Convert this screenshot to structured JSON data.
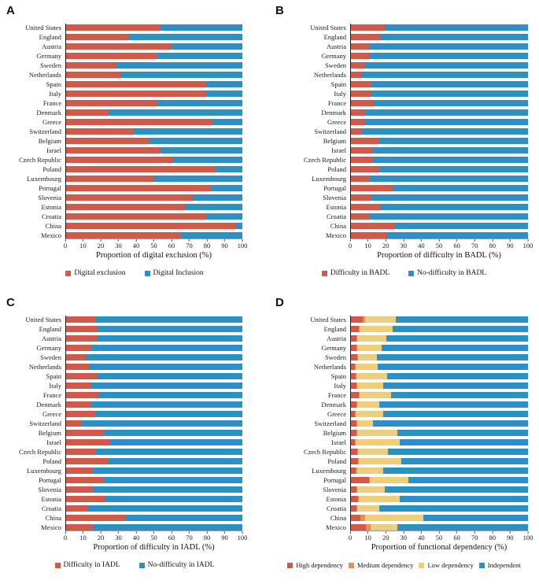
{
  "colors": {
    "red": "#D2584A",
    "orange": "#EF8A50",
    "yellow": "#EDCE7D",
    "blue": "#2B90C6"
  },
  "chart_data": [
    {
      "panel_label": "A",
      "type": "bar",
      "orientation": "horizontal",
      "stacked": true,
      "grid": false,
      "legend_position": "bottom",
      "xlabel": "Proportion of digital exclusion (%)",
      "xlim": [
        0,
        100
      ],
      "x_ticks": [
        0,
        10,
        20,
        30,
        40,
        50,
        60,
        70,
        80,
        90,
        100
      ],
      "categories": [
        "United States",
        "England",
        "Austria",
        "Germany",
        "Sweden",
        "Netherlands",
        "Spain",
        "Italy",
        "France",
        "Denmark",
        "Greece",
        "Switzerland",
        "Belgium",
        "Israel",
        "Czech Republic",
        "Poland",
        "Luxembourg",
        "Portugal",
        "Slovenia",
        "Estonia",
        "Croatia",
        "China",
        "Mexico"
      ],
      "series": [
        {
          "name": "Digital exclusion",
          "color": "#D2584A",
          "values": [
            53.5,
            35.5,
            59.5,
            52,
            28.5,
            31,
            79.5,
            79.5,
            51.5,
            24,
            82.5,
            38,
            47,
            53,
            60.5,
            84.5,
            49.5,
            82,
            72,
            67.5,
            79.5,
            96.5,
            65
          ]
        },
        {
          "name": "Digital Inclusion",
          "color": "#2B90C6",
          "values": [
            46.5,
            64.5,
            40.5,
            48,
            71.5,
            69,
            20.5,
            20.5,
            48.5,
            76,
            17.5,
            62,
            53,
            47,
            39.5,
            15.5,
            50.5,
            18,
            28,
            32.5,
            20.5,
            3.5,
            35
          ]
        }
      ]
    },
    {
      "panel_label": "B",
      "type": "bar",
      "orientation": "horizontal",
      "stacked": true,
      "grid": false,
      "legend_position": "bottom",
      "xlabel": "Proportion of difficulty in BADL (%)",
      "xlim": [
        0,
        100
      ],
      "x_ticks": [
        0,
        10,
        20,
        30,
        40,
        50,
        60,
        70,
        80,
        90,
        100
      ],
      "categories": [
        "United States",
        "England",
        "Austria",
        "Germany",
        "Sweden",
        "Netherlands",
        "Spain",
        "Italy",
        "France",
        "Denmark",
        "Greece",
        "Switzerland",
        "Belgium",
        "Israel",
        "Czech Republic",
        "Poland",
        "Luxembourg",
        "Portugal",
        "Slovenia",
        "Estonia",
        "Croatia",
        "China",
        "Mexico"
      ],
      "series": [
        {
          "name": "Difficulty in BADL",
          "color": "#D2584A",
          "values": [
            19,
            16.5,
            10.5,
            10.5,
            8,
            6,
            11.5,
            11,
            13,
            7.5,
            8,
            6,
            16,
            12.5,
            12.5,
            16,
            10,
            23.5,
            11,
            16.5,
            10,
            24.5,
            20
          ]
        },
        {
          "name": "No-difficulty in BADL",
          "color": "#2B90C6",
          "values": [
            81,
            83.5,
            89.5,
            89.5,
            92,
            94,
            88.5,
            89,
            87,
            92.5,
            92,
            94,
            84,
            87.5,
            87.5,
            84,
            90,
            76.5,
            89,
            83.5,
            90,
            75.5,
            80
          ]
        }
      ]
    },
    {
      "panel_label": "C",
      "type": "bar",
      "orientation": "horizontal",
      "stacked": true,
      "grid": false,
      "legend_position": "bottom",
      "xlabel": "Proportion of difficulty in IADL (%)",
      "xlim": [
        0,
        100
      ],
      "x_ticks": [
        0,
        10,
        20,
        30,
        40,
        50,
        60,
        70,
        80,
        90,
        100
      ],
      "categories": [
        "United States",
        "England",
        "Austria",
        "Germany",
        "Sweden",
        "Netherlands",
        "Spain",
        "Italy",
        "France",
        "Denmark",
        "Greece",
        "Switzerland",
        "Belgium",
        "Israel",
        "Czech Republic",
        "Poland",
        "Luxembourg",
        "Portugal",
        "Slovenia",
        "Estonia",
        "Croatia",
        "China",
        "Mexico"
      ],
      "series": [
        {
          "name": "Difficulty in IADL",
          "color": "#D2584A",
          "values": [
            16.5,
            18,
            17.5,
            14,
            11,
            13,
            17.5,
            14,
            18.5,
            14,
            16.5,
            9,
            21,
            25,
            16.5,
            24,
            15,
            21.5,
            15,
            22,
            12,
            33.5,
            15
          ]
        },
        {
          "name": "No-difficulty in IADL",
          "color": "#2B90C6",
          "values": [
            83.5,
            82,
            82.5,
            86,
            89,
            87,
            82.5,
            86,
            81.5,
            86,
            83.5,
            91,
            79,
            75,
            83.5,
            76,
            85,
            78.5,
            85,
            78,
            88,
            66.5,
            85
          ]
        }
      ]
    },
    {
      "panel_label": "D",
      "type": "bar",
      "orientation": "horizontal",
      "stacked": true,
      "grid": false,
      "legend_position": "bottom",
      "xlabel": "Proportion of functional dependency (%)",
      "xlim": [
        0,
        100
      ],
      "x_ticks": [
        0,
        10,
        20,
        30,
        40,
        50,
        60,
        70,
        80,
        90,
        100
      ],
      "categories": [
        "United States",
        "England",
        "Austria",
        "Germany",
        "Sweden",
        "Netherlands",
        "Spain",
        "Italy",
        "France",
        "Denmark",
        "Greece",
        "Switzerland",
        "Belgium",
        "Israel",
        "Czech Republic",
        "Poland",
        "Luxembourg",
        "Portugal",
        "Slovenia",
        "Estonia",
        "Croatia",
        "China",
        "Mexico"
      ],
      "series": [
        {
          "name": "High dependency",
          "color": "#D2584A",
          "values": [
            6.5,
            4.5,
            3,
            3,
            3.5,
            2,
            2.5,
            3,
            4.5,
            3,
            2,
            3,
            3,
            2,
            3.5,
            4,
            2.5,
            10,
            3,
            4,
            3,
            5.5,
            8.5
          ]
        },
        {
          "name": "Medium dependency",
          "color": "#EF8A50",
          "values": [
            1.5,
            0.5,
            0.5,
            0.5,
            0.5,
            0.5,
            0.5,
            0.5,
            0.5,
            0.5,
            0.5,
            0.5,
            0.5,
            0.5,
            0.5,
            0.5,
            1,
            0.5,
            0.5,
            0.5,
            0.5,
            2.5,
            2.5
          ]
        },
        {
          "name": "Low dependency",
          "color": "#EDCE7D",
          "values": [
            17.5,
            18.5,
            16.5,
            14,
            10.5,
            12.5,
            17.5,
            14.5,
            17.5,
            12.5,
            15.5,
            9,
            22.5,
            25,
            17,
            24,
            14.5,
            22,
            15.5,
            23,
            12.5,
            33,
            15
          ]
        },
        {
          "name": "Independent",
          "color": "#2B90C6",
          "values": [
            74.5,
            76.5,
            80,
            82.5,
            85.5,
            85,
            79.5,
            82,
            77.5,
            84,
            82,
            87.5,
            74,
            72.5,
            79,
            71.5,
            82,
            67.5,
            81,
            72.5,
            84,
            59,
            74
          ]
        }
      ]
    }
  ]
}
